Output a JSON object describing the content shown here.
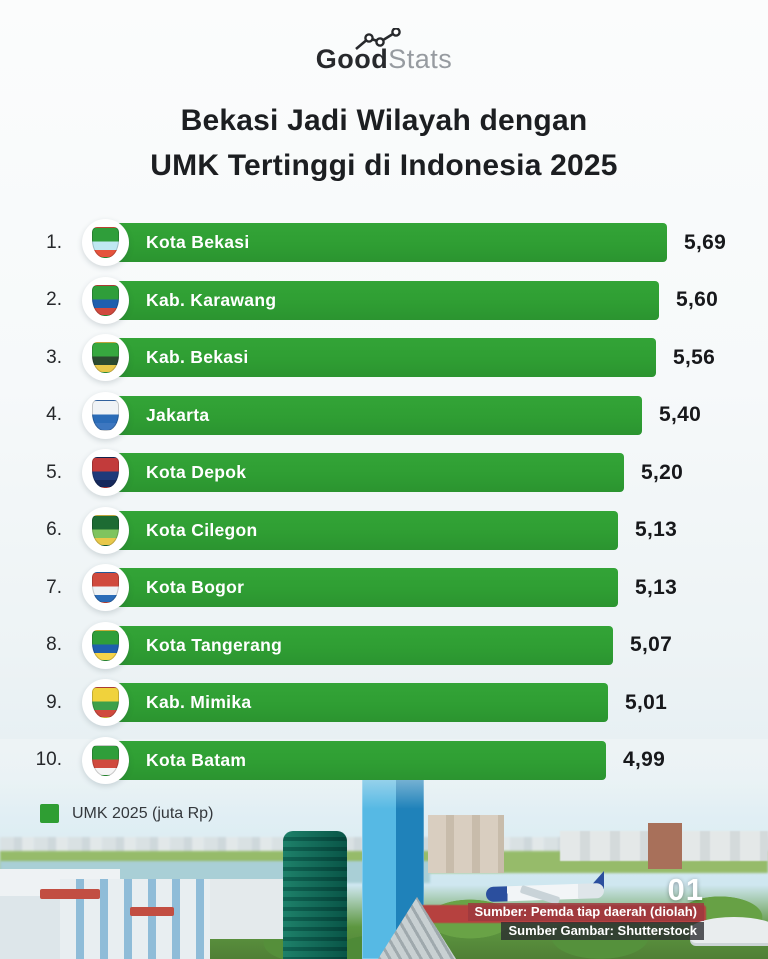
{
  "logo": {
    "bold": "Good",
    "light": "Stats",
    "icon": "line-chart-icon"
  },
  "title": {
    "line1": "Bekasi Jadi Wilayah dengan",
    "line2": "UMK Tertinggi di Indonesia 2025"
  },
  "chart_data": {
    "type": "bar",
    "orientation": "horizontal",
    "title": "Bekasi Jadi Wilayah dengan UMK Tertinggi di Indonesia 2025",
    "unit": "juta Rp",
    "bar_color": "#2f9e33",
    "xlim": [
      0,
      6
    ],
    "legend_position": "bottom-left",
    "categories": [
      "Kota Bekasi",
      "Kab. Karawang",
      "Kab. Bekasi",
      "Jakarta",
      "Kota Depok",
      "Kota Cilegon",
      "Kota Bogor",
      "Kota Tangerang",
      "Kab. Mimika",
      "Kota Batam"
    ],
    "values": [
      5.69,
      5.6,
      5.56,
      5.4,
      5.2,
      5.13,
      5.13,
      5.07,
      5.01,
      4.99
    ],
    "items": [
      {
        "rank": "1.",
        "name": "Kota Bekasi",
        "value": 5.69,
        "value_label": "5,69",
        "emblem": "kota-bekasi-emblem-icon",
        "emblem_colors": [
          "#2f9e3a",
          "#bfe8f2",
          "#e5533d"
        ]
      },
      {
        "rank": "2.",
        "name": "Kab. Karawang",
        "value": 5.6,
        "value_label": "5,60",
        "emblem": "kab-karawang-emblem-icon",
        "emblem_colors": [
          "#2f9e3a",
          "#1f5fae",
          "#d04a3e"
        ]
      },
      {
        "rank": "3.",
        "name": "Kab. Bekasi",
        "value": 5.56,
        "value_label": "5,56",
        "emblem": "kab-bekasi-emblem-icon",
        "emblem_colors": [
          "#37a83f",
          "#2b4a2f",
          "#e8c84a"
        ]
      },
      {
        "rank": "4.",
        "name": "Jakarta",
        "value": 5.4,
        "value_label": "5,40",
        "emblem": "jakarta-emblem-icon",
        "emblem_colors": [
          "#f0f3f6",
          "#2b6cb8",
          "#3d77c0"
        ]
      },
      {
        "rank": "5.",
        "name": "Kota Depok",
        "value": 5.2,
        "value_label": "5,20",
        "emblem": "kota-depok-emblem-icon",
        "emblem_colors": [
          "#c23b3b",
          "#1e3a7a",
          "#16295c"
        ]
      },
      {
        "rank": "6.",
        "name": "Kota Cilegon",
        "value": 5.13,
        "value_label": "5,13",
        "emblem": "kota-cilegon-emblem-icon",
        "emblem_colors": [
          "#1d6b33",
          "#7fc45e",
          "#e8c84a"
        ]
      },
      {
        "rank": "7.",
        "name": "Kota Bogor",
        "value": 5.13,
        "value_label": "5,13",
        "emblem": "kota-bogor-emblem-icon",
        "emblem_colors": [
          "#d04a3e",
          "#eef2f5",
          "#2b6cb8"
        ]
      },
      {
        "rank": "8.",
        "name": "Kota Tangerang",
        "value": 5.07,
        "value_label": "5,07",
        "emblem": "kota-tangerang-emblem-icon",
        "emblem_colors": [
          "#2f9e3a",
          "#1f5fae",
          "#f5d34a"
        ]
      },
      {
        "rank": "9.",
        "name": "Kab. Mimika",
        "value": 5.01,
        "value_label": "5,01",
        "emblem": "kab-mimika-emblem-icon",
        "emblem_colors": [
          "#f0d23c",
          "#3da04a",
          "#d04a3e"
        ]
      },
      {
        "rank": "10.",
        "name": "Kota Batam",
        "value": 4.99,
        "value_label": "4,99",
        "emblem": "kota-batam-emblem-icon",
        "emblem_colors": [
          "#2f9e3a",
          "#d04a3e",
          "#f5f5f5"
        ]
      }
    ]
  },
  "legend": {
    "label": "UMK 2025 (juta Rp)",
    "color": "#2f9e33"
  },
  "footer": {
    "page_number": "01",
    "source_line1": "Sumber: Pemda tiap daerah (diolah)",
    "source_line2": "Sumber Gambar: Shutterstock"
  }
}
